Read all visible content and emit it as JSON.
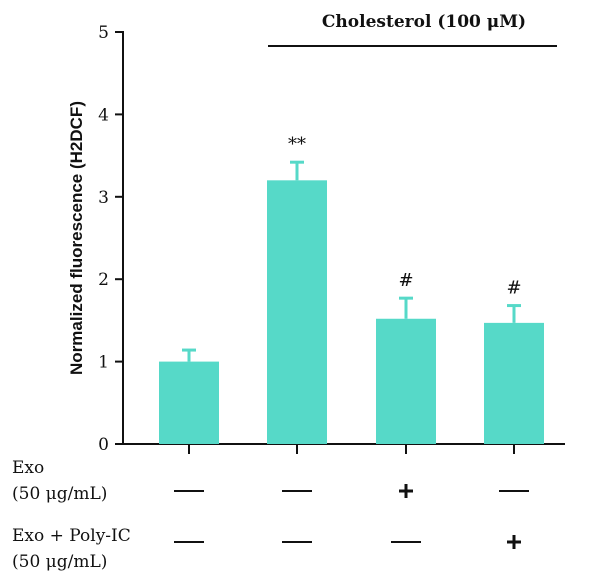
{
  "chart_data": {
    "type": "bar",
    "title": "",
    "xlabel": "",
    "ylabel": "Normalized fluorescence (H2DCF)",
    "ylim": [
      0,
      5
    ],
    "yticks": [
      0,
      1,
      2,
      3,
      4,
      5
    ],
    "grid": false,
    "bar_color": "#56d9c8",
    "values": [
      1.0,
      3.2,
      1.52,
      1.47
    ],
    "errors": [
      0.14,
      0.22,
      0.25,
      0.21
    ],
    "annotations": [
      "",
      "**",
      "#",
      "#"
    ],
    "group_label": "Cholesterol (100 μM)",
    "conditions": [
      {
        "label_lines": [
          "Exo",
          "(50 μg/mL)"
        ],
        "signs": [
          "—",
          "—",
          "+",
          "—"
        ]
      },
      {
        "label_lines": [
          "Exo + Poly-IC",
          "(50 μg/mL)"
        ],
        "signs": [
          "—",
          "—",
          "—",
          "+"
        ]
      }
    ]
  }
}
